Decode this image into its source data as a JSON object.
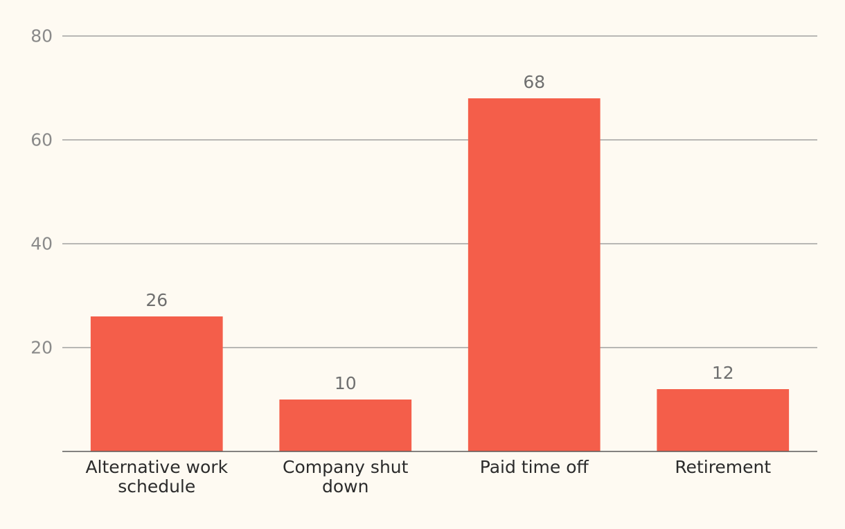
{
  "chart_data": {
    "type": "bar",
    "title": "",
    "xlabel": "",
    "ylabel": "",
    "ylim": [
      0,
      80
    ],
    "yticks": [
      20,
      40,
      60,
      80
    ],
    "categories": [
      [
        "Alternative work",
        "schedule"
      ],
      [
        "Company shut",
        "down"
      ],
      [
        "Paid time off"
      ],
      [
        "Retirement"
      ]
    ],
    "values": [
      26,
      10,
      68,
      12
    ],
    "value_labels": [
      "26",
      "10",
      "68",
      "12"
    ],
    "grid": true,
    "bar_color": "#f45e4a",
    "background_color": "#fefaf2"
  }
}
